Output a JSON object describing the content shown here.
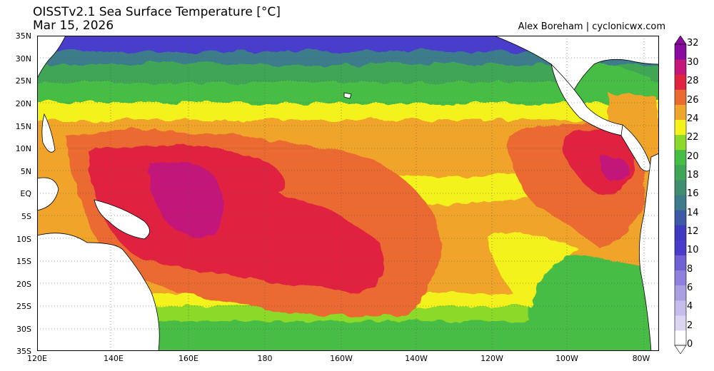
{
  "header": {
    "title": "OISSTv2.1 Sea Surface Temperature [°C]",
    "date": "Mar 15, 2026",
    "credit": "Alex Boreham | cyclonicwx.com"
  },
  "axes": {
    "lat_labels": [
      "35N",
      "30N",
      "25N",
      "20N",
      "15N",
      "10N",
      "5N",
      "EQ",
      "5S",
      "10S",
      "15S",
      "20S",
      "25S",
      "30S",
      "35S"
    ],
    "lon_labels": [
      "120E",
      "140E",
      "160E",
      "180",
      "160W",
      "140W",
      "120W",
      "100W",
      "80W"
    ]
  },
  "colorbar": {
    "labels": [
      "32",
      "30",
      "28",
      "26",
      "24",
      "22",
      "20",
      "18",
      "16",
      "14",
      "12",
      "10",
      "8",
      "6",
      "4",
      "2",
      "0"
    ],
    "colors": [
      "#ffffff",
      "#dcd6f2",
      "#c6bdec",
      "#ab9fe4",
      "#8e80dc",
      "#6f60d4",
      "#4a3ccb",
      "#3e3bc0",
      "#3d5aa6",
      "#3e7b8b",
      "#3f8f6e",
      "#3fa657",
      "#46bd45",
      "#8cd92a",
      "#f3f21a",
      "#f0a52c",
      "#ea6a31",
      "#e0243f",
      "#c3187a",
      "#8a0aa0"
    ],
    "units": "°C"
  },
  "palette": {
    "ocean_warmest": "#c3187a",
    "ocean_30": "#e0243f",
    "ocean_28": "#ea6a31",
    "ocean_27": "#f0a52c",
    "ocean_26": "#f3f21a",
    "ocean_24": "#8cd92a",
    "ocean_22": "#46bd45",
    "ocean_20": "#3fa657",
    "ocean_18": "#3f8f6e",
    "ocean_16": "#3e7b8b",
    "ocean_14": "#3d5aa6",
    "ocean_cold": "#4a3ccb",
    "land": "#ffffff"
  }
}
